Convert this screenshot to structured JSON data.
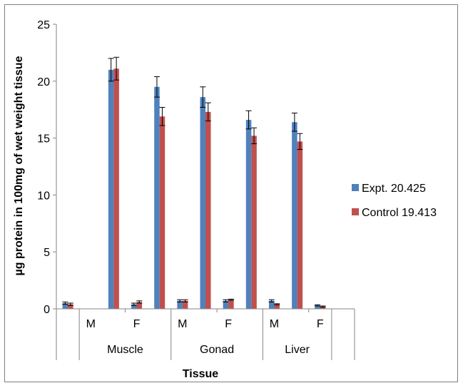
{
  "chart_data": {
    "type": "bar",
    "xlabel": "Tissue",
    "ylabel": "µg protein in 100mg of wet weight tissue",
    "ylim": [
      0,
      25
    ],
    "yticks": [
      0,
      5,
      10,
      15,
      20,
      25
    ],
    "grid": false,
    "legend_position": "right",
    "categories": [
      "",
      "M",
      "",
      "F",
      "",
      "M",
      "",
      "F",
      "",
      "M",
      "",
      "F",
      ""
    ],
    "groups": [
      {
        "label": "Muscle",
        "from": 1,
        "to": 4
      },
      {
        "label": "Gonad",
        "from": 5,
        "to": 8
      },
      {
        "label": "Liver",
        "from": 9,
        "to": 11
      }
    ],
    "series": [
      {
        "name": "Expt. 20.425",
        "color": "#4f81bd",
        "values": [
          0.5,
          0,
          21.0,
          0.4,
          19.5,
          0.7,
          18.6,
          0.7,
          16.6,
          0.7,
          16.4,
          0.3,
          0
        ],
        "errors": [
          0.1,
          0,
          1.0,
          0.1,
          0.9,
          0.1,
          0.9,
          0.1,
          0.8,
          0.1,
          0.8,
          0.05,
          0
        ]
      },
      {
        "name": "Control 19.413",
        "color": "#c0504d",
        "values": [
          0.4,
          0,
          21.1,
          0.6,
          16.9,
          0.7,
          17.3,
          0.8,
          15.2,
          0.4,
          14.7,
          0.2,
          0
        ],
        "errors": [
          0.1,
          0,
          1.0,
          0.1,
          0.8,
          0.1,
          0.8,
          0.05,
          0.7,
          0.05,
          0.7,
          0.05,
          0
        ]
      }
    ]
  }
}
